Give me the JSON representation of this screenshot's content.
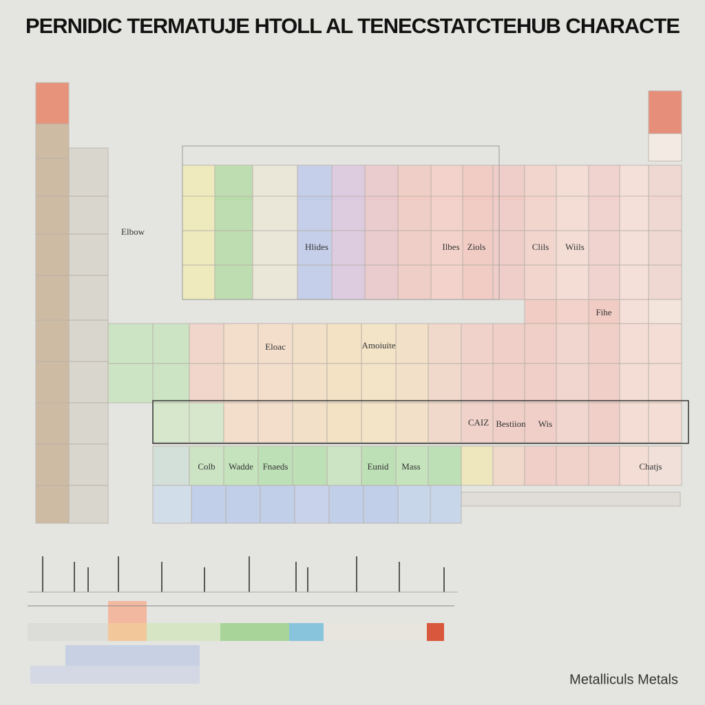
{
  "header": {
    "title": "PERNIDIC TERMATUJE HTOLL AL TENECSTATCTEHUB CHARACTE"
  },
  "labels": [
    "Elbow",
    "Hlides",
    "Ilbes",
    "Ziols",
    "Clils",
    "Wiils",
    "Fihe",
    "Eloac",
    "Amoiuite",
    "CAIZ",
    "Bestiion",
    "Wis",
    "Colb",
    "Wadde",
    "Fnaeds",
    "Eunid",
    "Mass",
    "Chatjs"
  ],
  "footer": {
    "note": "Metalliculs Metals"
  }
}
